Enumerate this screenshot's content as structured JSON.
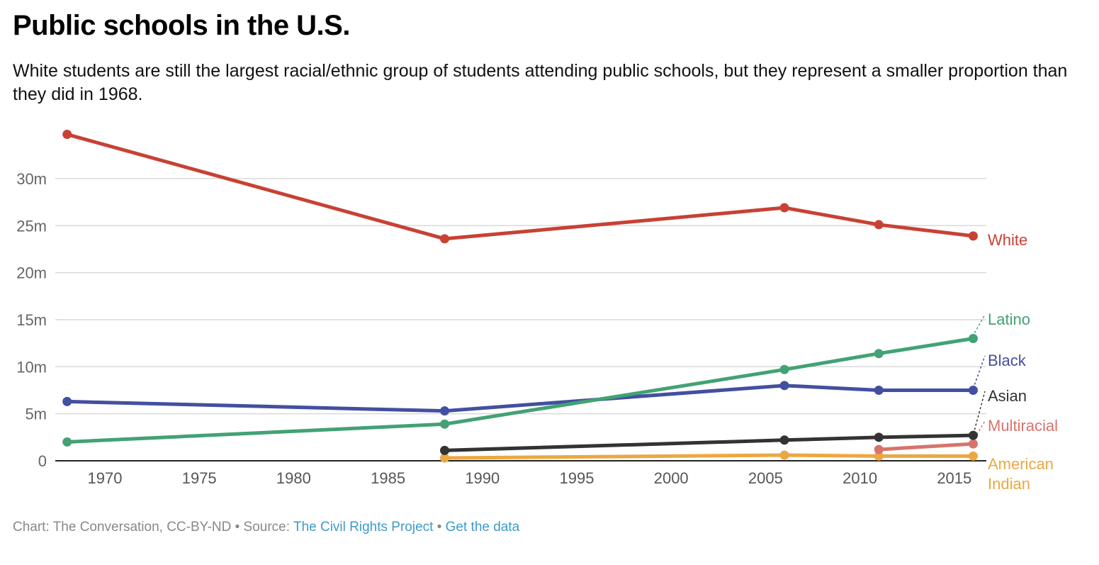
{
  "title": "Public schools in the U.S.",
  "subtitle": "White students are still the largest racial/ethnic group of students attending public schools, but they represent a smaller proportion than they did in 1968.",
  "footer": {
    "credit": "Chart: The Conversation, CC-BY-ND • Source: ",
    "source_link": "The Civil Rights Project",
    "separator": " • ",
    "data_link": "Get the data"
  },
  "chart_data": {
    "type": "line",
    "title": "Public schools in the U.S.",
    "xlabel": "",
    "ylabel": "",
    "xlim": [
      1968,
      2016
    ],
    "ylim": [
      0,
      35
    ],
    "x_ticks": [
      1970,
      1975,
      1980,
      1985,
      1990,
      1995,
      2000,
      2005,
      2010,
      2015
    ],
    "y_ticks": [
      {
        "v": 0,
        "label": "0"
      },
      {
        "v": 5,
        "label": "5m"
      },
      {
        "v": 10,
        "label": "10m"
      },
      {
        "v": 15,
        "label": "15m"
      },
      {
        "v": 20,
        "label": "20m"
      },
      {
        "v": 25,
        "label": "25m"
      },
      {
        "v": 30,
        "label": "30m"
      }
    ],
    "grid": true,
    "legend": "direct labels at right end",
    "series": [
      {
        "name": "White",
        "color": "#c84134",
        "x": [
          1968,
          1988,
          2006,
          2011,
          2016
        ],
        "values": [
          34.7,
          23.6,
          26.9,
          25.1,
          23.9
        ]
      },
      {
        "name": "Latino",
        "color": "#42a274",
        "x": [
          1968,
          1988,
          2006,
          2011,
          2016
        ],
        "values": [
          2.0,
          3.9,
          9.7,
          11.4,
          13.0
        ]
      },
      {
        "name": "Black",
        "color": "#434fa0",
        "x": [
          1968,
          1988,
          2006,
          2011,
          2016
        ],
        "values": [
          6.3,
          5.3,
          8.0,
          7.5,
          7.5
        ]
      },
      {
        "name": "Asian",
        "color": "#333333",
        "x": [
          1988,
          2006,
          2011,
          2016
        ],
        "values": [
          1.1,
          2.2,
          2.5,
          2.7
        ]
      },
      {
        "name": "Multiracial",
        "color": "#d8736b",
        "x": [
          2011,
          2016
        ],
        "values": [
          1.2,
          1.8
        ]
      },
      {
        "name": "American Indian",
        "label_lines": [
          "American",
          "Indian"
        ],
        "color": "#eba842",
        "x": [
          1988,
          2006,
          2011,
          2016
        ],
        "values": [
          0.3,
          0.6,
          0.5,
          0.5
        ]
      }
    ]
  }
}
